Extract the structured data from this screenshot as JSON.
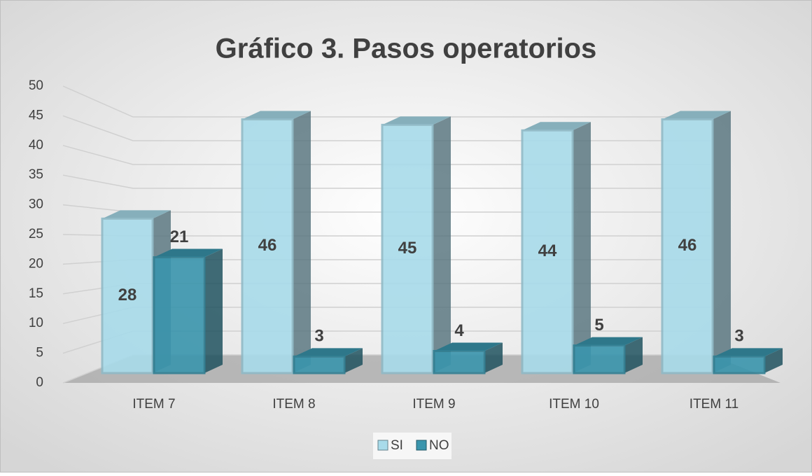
{
  "chart_data": {
    "type": "bar3d",
    "title": "Gráfico 3. Pasos operatorios",
    "categories": [
      "ITEM 7",
      "ITEM 8",
      "ITEM 9",
      "ITEM 10",
      "ITEM 11"
    ],
    "series": [
      {
        "name": "SI",
        "color": "#a8dbea",
        "values": [
          28,
          46,
          45,
          44,
          46
        ]
      },
      {
        "name": "NO",
        "color": "#3a95ad",
        "values": [
          21,
          3,
          4,
          5,
          3
        ]
      }
    ],
    "ylim": [
      0,
      50
    ],
    "yticks": [
      0,
      5,
      10,
      15,
      20,
      25,
      30,
      35,
      40,
      45,
      50
    ],
    "grid": true,
    "legend": "bottom"
  }
}
